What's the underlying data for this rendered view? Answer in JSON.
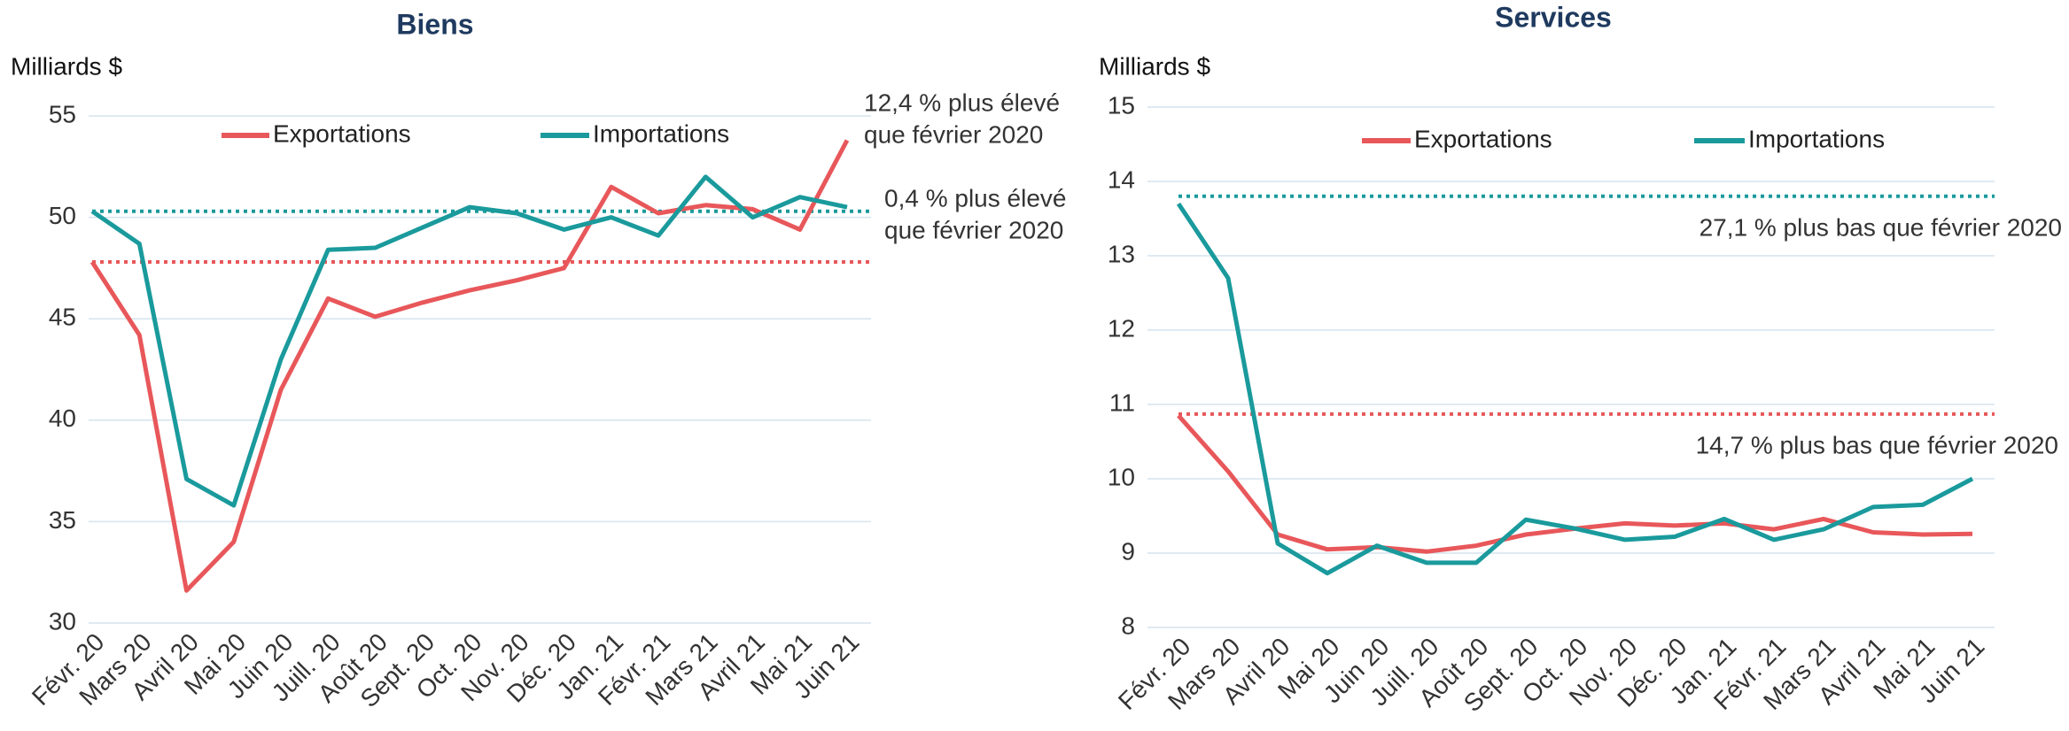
{
  "chart_data": [
    {
      "type": "line",
      "title": "Biens",
      "y_label": "Milliards $",
      "categories": [
        "Févr. 20",
        "Mars 20",
        "Avril 20",
        "Mai 20",
        "Juin 20",
        "Juill. 20",
        "Août 20",
        "Sept. 20",
        "Oct. 20",
        "Nov. 20",
        "Déc. 20",
        "Jan. 21",
        "Févr. 21",
        "Mars 21",
        "Avril 21",
        "Mai 21",
        "Juin 21"
      ],
      "series": [
        {
          "name": "Exportations",
          "color": "#e8575a",
          "values": [
            47.8,
            44.2,
            31.6,
            34.0,
            41.5,
            46.0,
            45.1,
            45.8,
            46.4,
            46.9,
            47.5,
            51.5,
            50.2,
            50.6,
            50.4,
            49.4,
            53.8
          ]
        },
        {
          "name": "Importations",
          "color": "#1a9a9c",
          "values": [
            50.3,
            48.7,
            37.1,
            35.8,
            43.0,
            48.4,
            48.5,
            49.5,
            50.5,
            50.2,
            49.4,
            50.0,
            49.1,
            52.0,
            50.0,
            51.0,
            50.5
          ]
        }
      ],
      "reference_lines": [
        {
          "value": 47.8,
          "color": "#e8575a",
          "label": [
            "12,4 % plus élevé",
            "que février 2020"
          ]
        },
        {
          "value": 50.3,
          "color": "#1a9a9c",
          "label": [
            "0,4 % plus élevé",
            "que février 2020"
          ]
        }
      ],
      "ylim": [
        30,
        55
      ],
      "yticks": [
        30,
        35,
        40,
        45,
        50,
        55
      ],
      "grid": true,
      "legend": "top"
    },
    {
      "type": "line",
      "title": "Services",
      "y_label": "Milliards $",
      "categories": [
        "Févr. 20",
        "Mars 20",
        "Avril 20",
        "Mai 20",
        "Juin 20",
        "Juill. 20",
        "Août 20",
        "Sept. 20",
        "Oct. 20",
        "Nov. 20",
        "Déc. 20",
        "Jan. 21",
        "Févr. 21",
        "Mars 21",
        "Avril 21",
        "Mai 21",
        "Juin 21"
      ],
      "series": [
        {
          "name": "Exportations",
          "color": "#e8575a",
          "values": [
            10.85,
            10.1,
            9.25,
            9.05,
            9.08,
            9.02,
            9.1,
            9.25,
            9.33,
            9.4,
            9.37,
            9.4,
            9.32,
            9.46,
            9.28,
            9.25,
            9.26
          ]
        },
        {
          "name": "Importations",
          "color": "#1a9a9c",
          "values": [
            13.7,
            12.7,
            9.13,
            8.73,
            9.1,
            8.87,
            8.87,
            9.45,
            9.33,
            9.18,
            9.22,
            9.46,
            9.18,
            9.32,
            9.62,
            9.65,
            10.0
          ]
        }
      ],
      "reference_lines": [
        {
          "value": 10.87,
          "color": "#e8575a",
          "label": [
            "14,7 % plus bas que février 2020"
          ]
        },
        {
          "value": 13.8,
          "color": "#1a9a9c",
          "label": [
            "27,1 % plus bas que février 2020"
          ]
        }
      ],
      "ylim": [
        8,
        15
      ],
      "yticks": [
        8,
        9,
        10,
        11,
        12,
        13,
        14,
        15
      ],
      "grid": true,
      "legend": "top"
    }
  ]
}
